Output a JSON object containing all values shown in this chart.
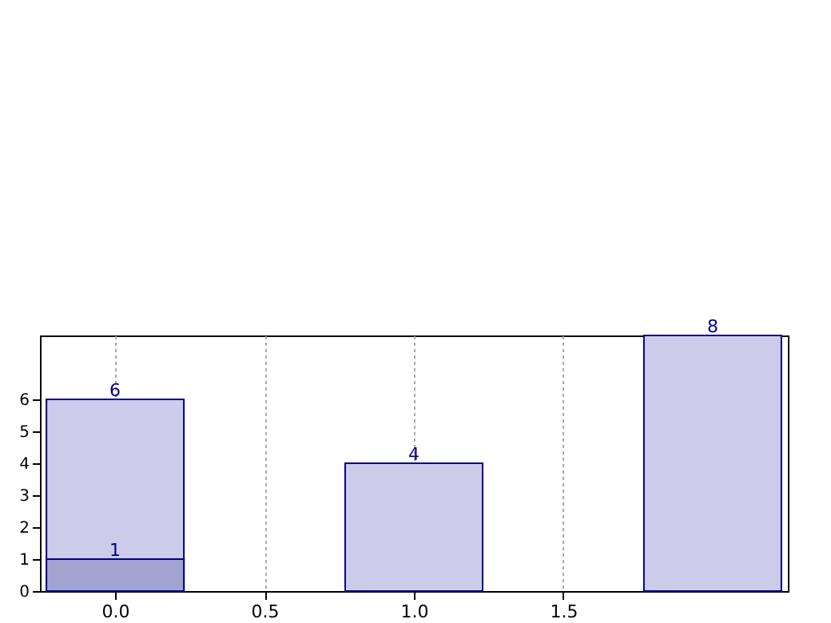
{
  "chart_data": {
    "type": "bar",
    "x": [
      0,
      1,
      2
    ],
    "series": [
      {
        "color": "#ccccea",
        "values": [
          6,
          4,
          8
        ]
      },
      {
        "color": "#a3a3cf",
        "values": [
          1,
          null,
          null
        ]
      }
    ],
    "xlim": [
      -0.225,
      2.225
    ],
    "xticks": [
      {
        "value": 0,
        "label": "0.0"
      },
      {
        "value": 0.5,
        "label": "0.5"
      },
      {
        "value": 1,
        "label": "1.0"
      },
      {
        "value": 1.5,
        "label": "1.5"
      }
    ],
    "ylim": [
      0,
      8
    ],
    "yticks": [
      0,
      1,
      2,
      3,
      4,
      5,
      6
    ],
    "grid": "x",
    "data_labels": true
  }
}
